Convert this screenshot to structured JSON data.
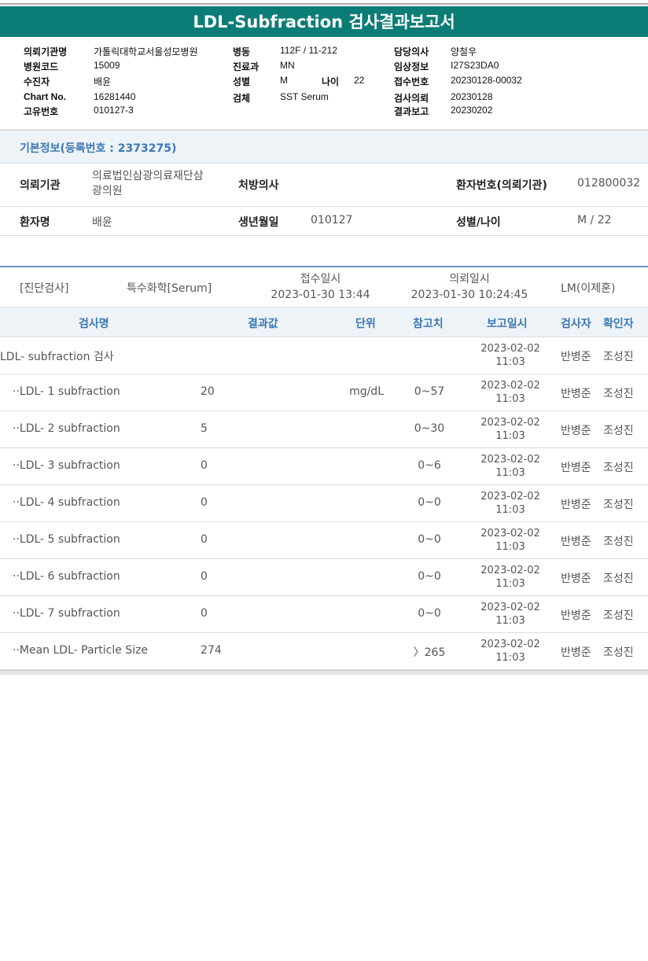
{
  "title": "LDL-Subfraction 검사결과보고서",
  "header": {
    "col1": [
      {
        "label": "의뢰기관명",
        "value": "가톨릭대학교서울성모병원"
      },
      {
        "label": "병원코드",
        "value": "15009"
      },
      {
        "label": "수진자",
        "value": "배윤"
      },
      {
        "label": "Chart No.",
        "value": "16281440"
      },
      {
        "label": "고유번호",
        "value": "010127-3"
      }
    ],
    "col2": [
      {
        "label": "병동",
        "value": "112F / 11-212"
      },
      {
        "label": "진료과",
        "value": "MN"
      },
      {
        "label": "성별",
        "value": "M"
      },
      {
        "label": "검체",
        "value": "SST Serum"
      }
    ],
    "age_label": "나이",
    "age_value": "22",
    "col3": [
      {
        "label": "담당의사",
        "value": "양철우"
      },
      {
        "label": "임상정보",
        "value": "I27S23DA0"
      },
      {
        "label": "접수번호",
        "value": "20230128-00032"
      },
      {
        "label": "검사의뢰",
        "value": "20230128"
      },
      {
        "label": "결과보고",
        "value": "20230202"
      }
    ]
  },
  "basic": {
    "title": "기본정보(등록번호 : 2373275)",
    "institution_label": "의뢰기관",
    "institution_value_1": "의료법인삼광의료재단삼",
    "institution_value_2": "광의원",
    "doctor_label": "처방의사",
    "doctor_value": "",
    "patient_no_label": "환자번호(의뢰기관)",
    "patient_no_value": "012800032",
    "name_label": "환자명",
    "name_value": "배윤",
    "birth_label": "생년월일",
    "birth_value": "010127",
    "sex_age_label": "성별/나이",
    "sex_age_value": "M / 22"
  },
  "exam": {
    "category": "[진단검사]",
    "type": "특수화학[Serum]",
    "received_label": "접수일시",
    "received_value": "2023-01-30 13:44",
    "requested_label": "의뢰일시",
    "requested_value": "2023-01-30 10:24:45",
    "lab": "LM(이제훈)"
  },
  "table": {
    "headers": [
      "검사명",
      "결과값",
      "단위",
      "참고치",
      "보고일시",
      "검사자",
      "확인자"
    ],
    "rows": [
      {
        "name": "LDL- subfraction 검사",
        "result": "",
        "unit": "",
        "ref": "",
        "date": "2023-02-02",
        "time": "11:03",
        "tester": "반병준",
        "confirmer": "조성진"
      },
      {
        "name": "··LDL- 1 subfraction",
        "result": "20",
        "unit": "mg/dL",
        "ref": "0~57",
        "date": "2023-02-02",
        "time": "11:03",
        "tester": "반병준",
        "confirmer": "조성진"
      },
      {
        "name": "··LDL- 2 subfraction",
        "result": "5",
        "unit": "",
        "ref": "0~30",
        "date": "2023-02-02",
        "time": "11:03",
        "tester": "반병준",
        "confirmer": "조성진"
      },
      {
        "name": "··LDL- 3 subfraction",
        "result": "0",
        "unit": "",
        "ref": "0~6",
        "date": "2023-02-02",
        "time": "11:03",
        "tester": "반병준",
        "confirmer": "조성진"
      },
      {
        "name": "··LDL- 4 subfraction",
        "result": "0",
        "unit": "",
        "ref": "0~0",
        "date": "2023-02-02",
        "time": "11:03",
        "tester": "반병준",
        "confirmer": "조성진"
      },
      {
        "name": "··LDL- 5 subfraction",
        "result": "0",
        "unit": "",
        "ref": "0~0",
        "date": "2023-02-02",
        "time": "11:03",
        "tester": "반병준",
        "confirmer": "조성진"
      },
      {
        "name": "··LDL- 6 subfraction",
        "result": "0",
        "unit": "",
        "ref": "0~0",
        "date": "2023-02-02",
        "time": "11:03",
        "tester": "반병준",
        "confirmer": "조성진"
      },
      {
        "name": "··LDL- 7 subfraction",
        "result": "0",
        "unit": "",
        "ref": "0~0",
        "date": "2023-02-02",
        "time": "11:03",
        "tester": "반병준",
        "confirmer": "조성진"
      },
      {
        "name": "··Mean LDL- Particle Size",
        "result": "274",
        "unit": "",
        "ref": "〉265",
        "date": "2023-02-02",
        "time": "11:03",
        "tester": "반병준",
        "confirmer": "조성진"
      }
    ]
  }
}
